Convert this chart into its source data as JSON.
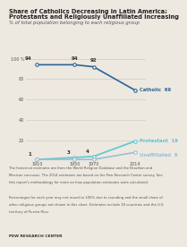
{
  "title_line1": "Share of Catholics Decreasing in Latin America;",
  "title_line2": "Protestants and Religiously Unaffiliated Increasing",
  "subtitle": "% of total population belonging to each religious group",
  "years": [
    1910,
    1950,
    1970,
    2014
  ],
  "catholic": [
    94,
    94,
    92,
    69
  ],
  "protestant": [
    1,
    3,
    4,
    19
  ],
  "unaffiliated": [
    1,
    1,
    1,
    8
  ],
  "catholic_color": "#2B6496",
  "protestant_color": "#5BC8D2",
  "unaffiliated_color": "#9ABFD4",
  "bg_color": "#EDE8E0",
  "grid_color": "#CCCCCC",
  "ylim": [
    0,
    100
  ],
  "yticks": [
    0,
    20,
    40,
    60,
    80,
    100
  ],
  "footnote_lines": [
    "The historical estimates are from the World Religion Database and the Brazilian and",
    "Mexican censuses. The 2014 estimates are based on the Pew Research Center survey. See",
    "this report's methodology for more on how population estimates were calculated.",
    "",
    "Percentages for each year may not round to 100% due to rounding and the small share of",
    "other religious groups not shown in this chart. Estimates include 18 countries and the U.S.",
    "territory of Puerto Rico."
  ],
  "source": "PEW RESEARCH CENTER"
}
